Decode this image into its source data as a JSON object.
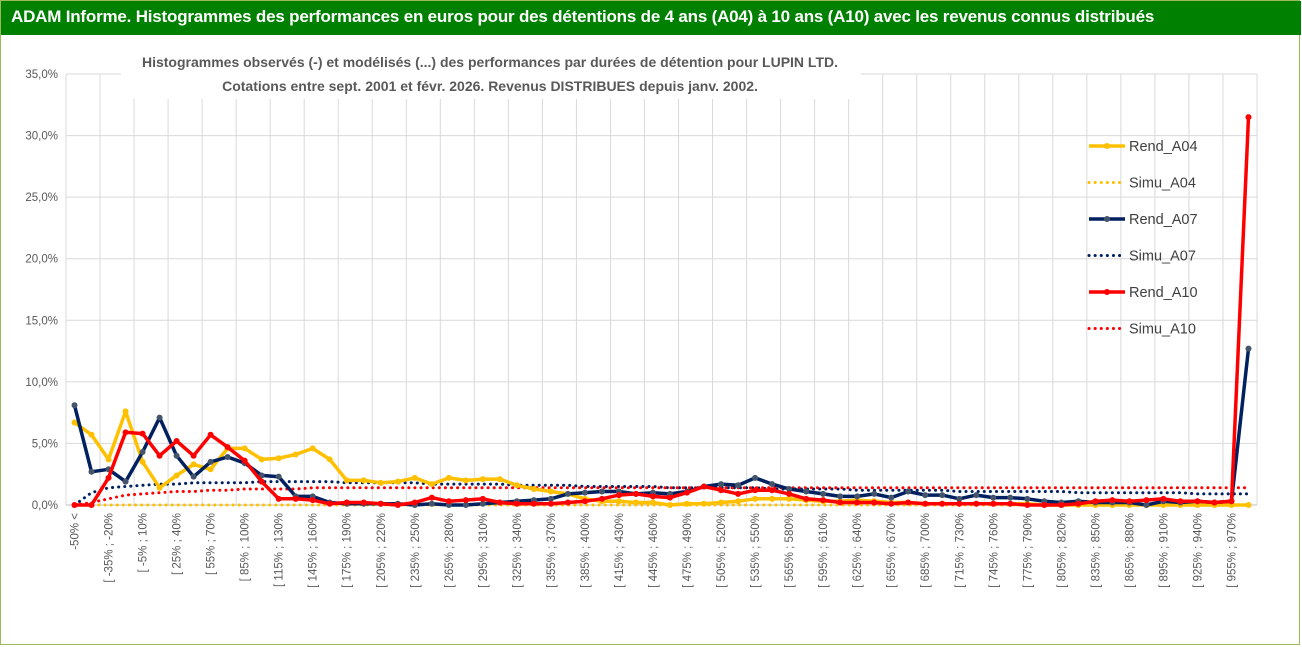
{
  "header": {
    "title": "ADAM Informe. Histogrammes des performances en euros pour des détentions de 4 ans (A04) à 10 ans (A10) avec les revenus connus distribués"
  },
  "colors": {
    "header_bg": "#008000",
    "A04": "#FFC000",
    "A07": "#002060",
    "A10": "#FF0000",
    "grid": "#D9D9D9"
  },
  "chart_data": {
    "type": "line",
    "title": [
      "Histogrammes observés (-) et modélisés (...) des performances par durées de détention pour LUPIN LTD.",
      "Cotations entre sept. 2001 et févr. 2026. Revenus DISTRIBUES depuis janv. 2002."
    ],
    "ylim": [
      0,
      35
    ],
    "yticks": [
      "0,0%",
      "5,0%",
      "10,0%",
      "15,0%",
      "20,0%",
      "25,0%",
      "30,0%",
      "35,0%"
    ],
    "grid": true,
    "legend_position": "right",
    "x_labels_shown": [
      "-50% <",
      "[ -35% ; -20%",
      "[ -5% ; 10%",
      "[ 25% ; 40%",
      "[ 55% ; 70%",
      "[ 85% ; 100%",
      "[ 115% ; 130%",
      "[ 145% ; 160%",
      "[ 175% ; 190%",
      "[ 205% ; 220%",
      "[ 235% ; 250%",
      "[ 265% ; 280%",
      "[ 295% ; 310%",
      "[ 325% ; 340%",
      "[ 355% ; 370%",
      "[ 385% ; 400%",
      "[ 415% ; 430%",
      "[ 445% ; 460%",
      "[ 475% ; 490%",
      "[ 505% ; 520%",
      "[ 535% ; 550%",
      "[ 565% ; 580%",
      "[ 595% ; 610%",
      "[ 625% ; 640%",
      "[ 655% ; 670%",
      "[ 685% ; 700%",
      "[ 715% ; 730%",
      "[ 745% ; 760%",
      "[ 775% ; 790%",
      "[ 805% ; 820%",
      "[ 835% ; 850%",
      "[ 865% ; 880%",
      "[ 895% ; 910%",
      "[ 925% ; 940%",
      "[ 955% ; 970%"
    ],
    "categories_count": 70,
    "series": [
      {
        "name": "Rend_A04",
        "style": "solid-marker",
        "color": "#FFC000",
        "values": [
          6.7,
          5.7,
          3.7,
          7.6,
          3.5,
          1.4,
          2.4,
          3.3,
          2.9,
          4.6,
          4.6,
          3.7,
          3.8,
          4.1,
          4.6,
          3.7,
          2.0,
          2.0,
          1.8,
          1.9,
          2.2,
          1.7,
          2.2,
          2.0,
          2.1,
          2.1,
          1.6,
          1.3,
          1.1,
          0.9,
          0.5,
          0.3,
          0.3,
          0.2,
          0.2,
          0.0,
          0.1,
          0.1,
          0.2,
          0.3,
          0.5,
          0.5,
          0.5,
          0.4,
          0.3,
          0.3,
          0.4,
          0.3,
          0.2,
          0.2,
          0.1,
          0.1,
          0.1,
          0.1,
          0.1,
          0.1,
          0.1,
          0.0,
          0.0,
          0.0,
          0.0,
          0.0,
          0.0,
          0.0,
          0.0,
          0.0,
          0.0,
          0.0,
          0.0,
          0.0
        ]
      },
      {
        "name": "Simu_A04",
        "style": "dotted",
        "color": "#FFC000",
        "values": [
          0.0,
          0.0,
          0.0,
          0.0,
          0.0,
          0.0,
          0.0,
          0.0,
          0.0,
          0.0,
          0.0,
          0.0,
          0.0,
          0.0,
          0.0,
          0.0,
          0.0,
          0.0,
          0.0,
          0.0,
          0.0,
          0.0,
          0.0,
          0.0,
          0.0,
          0.0,
          0.0,
          0.0,
          0.0,
          0.0,
          0.0,
          0.0,
          0.0,
          0.0,
          0.0,
          0.0,
          0.0,
          0.0,
          0.0,
          0.0,
          0.0,
          0.0,
          0.0,
          0.0,
          0.0,
          0.0,
          0.0,
          0.0,
          0.0,
          0.0,
          0.0,
          0.0,
          0.0,
          0.0,
          0.0,
          0.0,
          0.0,
          0.0,
          0.0,
          0.0,
          0.0,
          0.0,
          0.0,
          0.0,
          0.0,
          0.0,
          0.0,
          0.0,
          0.0,
          0.0
        ]
      },
      {
        "name": "Rend_A07",
        "style": "solid-marker",
        "color": "#002060",
        "values": [
          8.1,
          2.7,
          2.9,
          1.9,
          4.3,
          7.1,
          4.0,
          2.3,
          3.5,
          3.9,
          3.4,
          2.4,
          2.3,
          0.7,
          0.7,
          0.2,
          0.1,
          0.1,
          0.1,
          0.1,
          0.0,
          0.1,
          0.0,
          0.0,
          0.1,
          0.2,
          0.3,
          0.4,
          0.5,
          0.9,
          1.0,
          1.1,
          1.1,
          0.9,
          1.0,
          0.9,
          1.1,
          1.5,
          1.7,
          1.6,
          2.2,
          1.7,
          1.3,
          1.1,
          0.9,
          0.7,
          0.7,
          0.9,
          0.6,
          1.1,
          0.8,
          0.8,
          0.5,
          0.8,
          0.6,
          0.6,
          0.5,
          0.3,
          0.2,
          0.3,
          0.2,
          0.2,
          0.2,
          0.0,
          0.3,
          0.2,
          0.3,
          0.2,
          0.3,
          12.7
        ]
      },
      {
        "name": "Simu_A07",
        "style": "dotted",
        "color": "#002060",
        "values": [
          0.0,
          1.0,
          1.4,
          1.5,
          1.6,
          1.7,
          1.7,
          1.8,
          1.8,
          1.8,
          1.8,
          1.9,
          1.9,
          1.9,
          1.9,
          1.9,
          1.8,
          1.8,
          1.8,
          1.8,
          1.8,
          1.7,
          1.7,
          1.7,
          1.7,
          1.7,
          1.6,
          1.6,
          1.6,
          1.6,
          1.5,
          1.5,
          1.5,
          1.5,
          1.5,
          1.4,
          1.4,
          1.4,
          1.4,
          1.4,
          1.4,
          1.3,
          1.3,
          1.3,
          1.3,
          1.3,
          1.2,
          1.2,
          1.2,
          1.2,
          1.2,
          1.2,
          1.1,
          1.1,
          1.1,
          1.1,
          1.1,
          1.1,
          1.1,
          1.0,
          1.0,
          1.0,
          1.0,
          1.0,
          1.0,
          1.0,
          0.9,
          0.9,
          0.9,
          0.9
        ]
      },
      {
        "name": "Rend_A10",
        "style": "solid-marker",
        "color": "#FF0000",
        "values": [
          0.0,
          0.0,
          2.2,
          5.9,
          5.8,
          4.0,
          5.2,
          4.0,
          5.7,
          4.7,
          3.6,
          1.9,
          0.5,
          0.5,
          0.4,
          0.1,
          0.2,
          0.2,
          0.1,
          0.0,
          0.2,
          0.6,
          0.3,
          0.4,
          0.5,
          0.2,
          0.1,
          0.1,
          0.1,
          0.2,
          0.3,
          0.5,
          0.8,
          0.9,
          0.7,
          0.6,
          1.0,
          1.5,
          1.2,
          0.9,
          1.2,
          1.2,
          0.9,
          0.5,
          0.4,
          0.2,
          0.2,
          0.2,
          0.1,
          0.2,
          0.1,
          0.1,
          0.1,
          0.1,
          0.1,
          0.1,
          0.0,
          0.0,
          0.0,
          0.1,
          0.3,
          0.4,
          0.3,
          0.4,
          0.5,
          0.3,
          0.3,
          0.2,
          0.3,
          31.5
        ]
      },
      {
        "name": "Simu_A10",
        "style": "dotted",
        "color": "#FF0000",
        "values": [
          0.0,
          0.2,
          0.5,
          0.8,
          0.9,
          1.0,
          1.1,
          1.1,
          1.2,
          1.2,
          1.3,
          1.3,
          1.3,
          1.3,
          1.4,
          1.4,
          1.4,
          1.4,
          1.4,
          1.4,
          1.4,
          1.4,
          1.4,
          1.4,
          1.4,
          1.4,
          1.4,
          1.4,
          1.4,
          1.4,
          1.4,
          1.4,
          1.4,
          1.4,
          1.4,
          1.4,
          1.4,
          1.4,
          1.4,
          1.4,
          1.4,
          1.4,
          1.4,
          1.4,
          1.4,
          1.4,
          1.4,
          1.4,
          1.4,
          1.4,
          1.4,
          1.4,
          1.4,
          1.4,
          1.4,
          1.4,
          1.4,
          1.4,
          1.4,
          1.4,
          1.4,
          1.4,
          1.4,
          1.4,
          1.4,
          1.4,
          1.4,
          1.4,
          1.4,
          1.4
        ]
      }
    ]
  }
}
